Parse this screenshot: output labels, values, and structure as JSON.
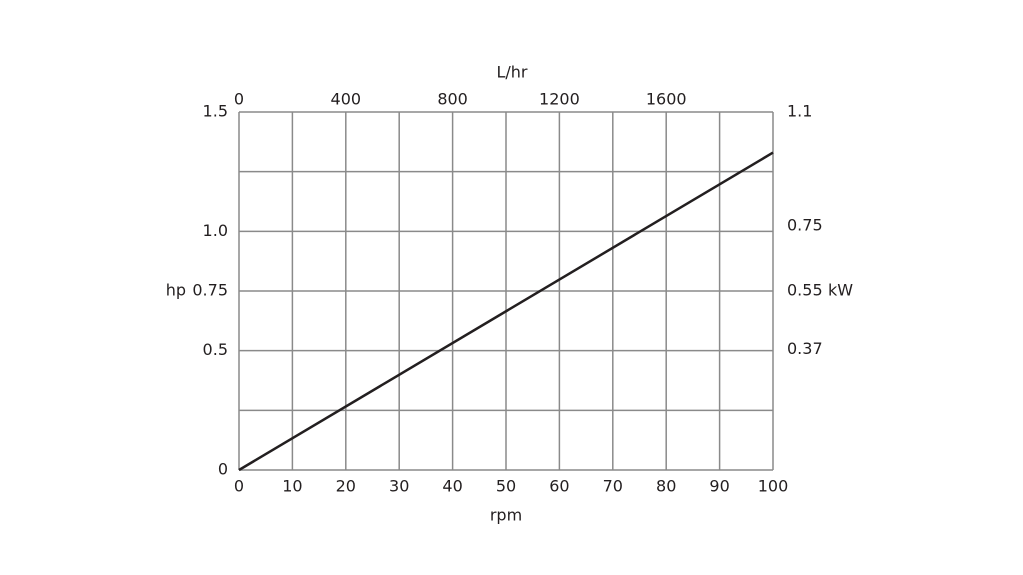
{
  "chart_data": {
    "type": "line",
    "x_label": "rpm",
    "x2_label": "L/hr",
    "y_label": "hp",
    "y2_label": "kW",
    "x": [
      0,
      100
    ],
    "series": [
      {
        "color": "#231f20",
        "values": [
          0,
          1.33
        ]
      }
    ],
    "xlim": [
      0,
      100
    ],
    "xticks": [
      0,
      10,
      20,
      30,
      40,
      50,
      60,
      70,
      80,
      90,
      100
    ],
    "x2lim": [
      0,
      2000
    ],
    "x2ticks": [
      0,
      400,
      800,
      1200,
      1600
    ],
    "ylim": [
      0,
      1.5
    ],
    "yticks": [
      0,
      0.5,
      0.75,
      {
        "value": 1,
        "label": "1.0"
      },
      1.5
    ],
    "y2lim": [
      0,
      1.1
    ],
    "y2ticks": [
      0.37,
      0.55,
      0.75,
      1.1
    ],
    "grid": true
  }
}
